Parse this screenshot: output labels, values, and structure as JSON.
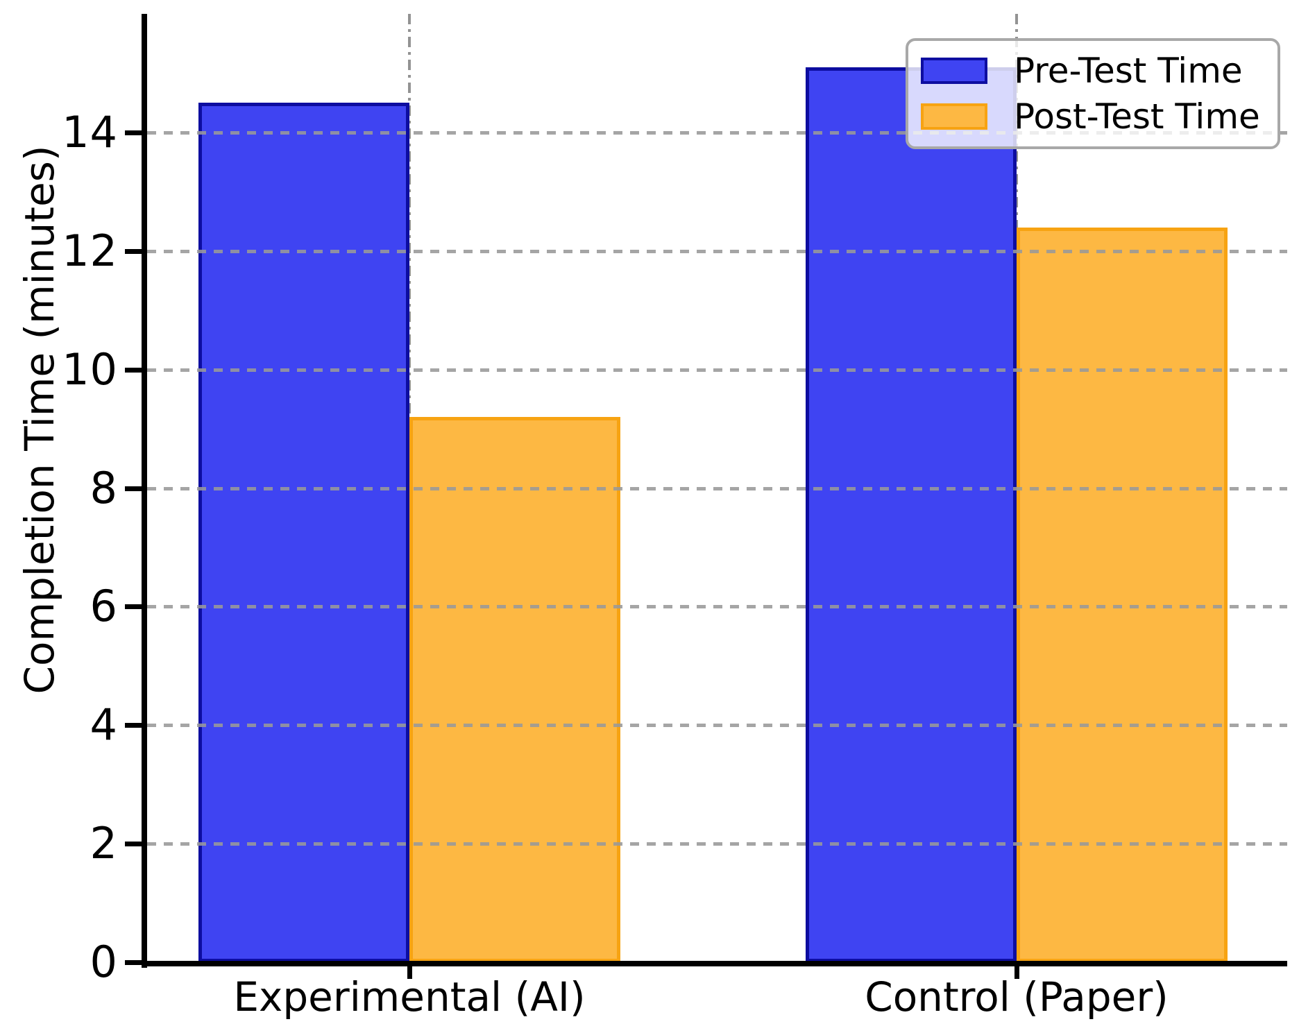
{
  "chart_data": {
    "type": "bar",
    "title": "",
    "xlabel": "",
    "ylabel": "Completion Time (minutes)",
    "categories": [
      "Experimental (AI)",
      "Control (Paper)"
    ],
    "series": [
      {
        "name": "Pre-Test Time",
        "values": [
          14.5,
          15.1
        ],
        "fill": "#3f44f2",
        "edge": "#0d0da0"
      },
      {
        "name": "Post-Test Time",
        "values": [
          9.2,
          12.4
        ],
        "fill": "#fdb843",
        "edge": "#f7a312"
      }
    ],
    "yticks": [
      0,
      2,
      4,
      6,
      8,
      10,
      12,
      14
    ],
    "ylim": [
      0,
      16
    ],
    "grid": {
      "horizontal_style": "dashed",
      "vertical_style": "dash-dot",
      "color": "#999999",
      "vertical_at_category_centers": true
    },
    "legend": {
      "position": "upper right",
      "entries": [
        "Pre-Test Time",
        "Post-Test Time"
      ],
      "border_color": "#a8a8a8",
      "background": "rgba(255,255,255,0.8)"
    },
    "axis_color": "#000000",
    "background": "#ffffff"
  }
}
